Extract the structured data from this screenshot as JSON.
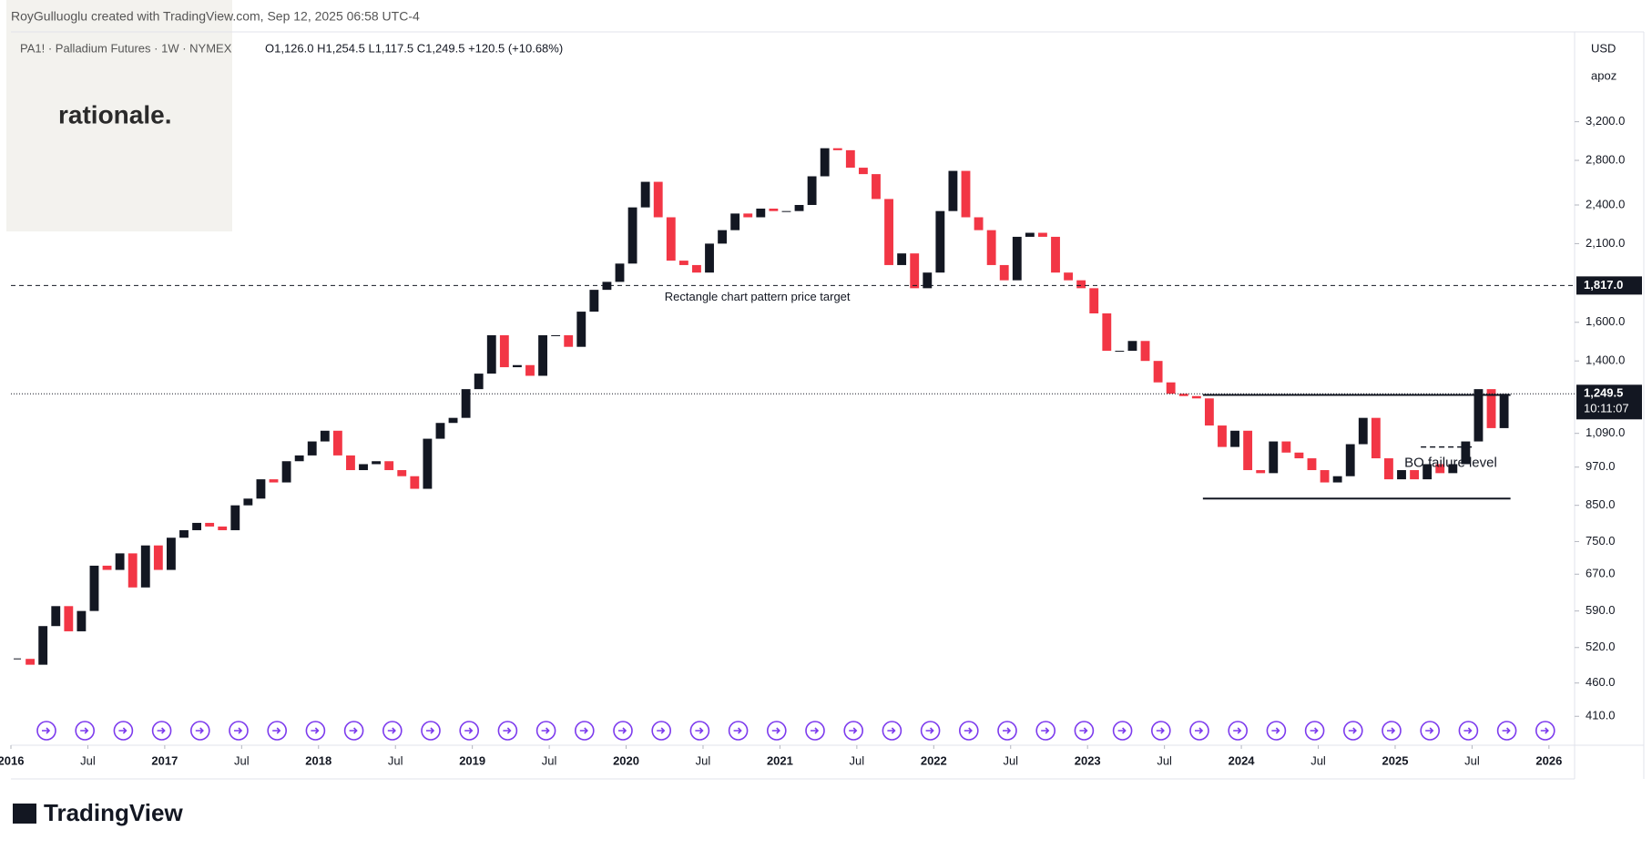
{
  "header": {
    "credit": "RoyGulluoglu created with TradingView.com, Sep 12, 2025 06:58 UTC-4",
    "symbol": "PA1! · Palladium Futures · 1W · NYMEX",
    "ohlc": "O1,126.0 H1,254.5 L1,117.5 C1,249.5 +120.5 (+10.68%)",
    "watermark": "rationale.",
    "currency": "USD",
    "unit": "apoz",
    "brand": "TradingView"
  },
  "chart_data": {
    "type": "candlestick",
    "log_scale": true,
    "grid": false,
    "up_color": "#131722",
    "down_color": "#f23645",
    "x": [
      "2016-01",
      "2016-02",
      "2016-03",
      "2016-04",
      "2016-05",
      "2016-06",
      "2016-07",
      "2016-08",
      "2016-09",
      "2016-10",
      "2016-11",
      "2016-12",
      "2017-01",
      "2017-02",
      "2017-03",
      "2017-04",
      "2017-05",
      "2017-06",
      "2017-07",
      "2017-08",
      "2017-09",
      "2017-10",
      "2017-11",
      "2017-12",
      "2018-01",
      "2018-02",
      "2018-03",
      "2018-04",
      "2018-05",
      "2018-06",
      "2018-07",
      "2018-08",
      "2018-09",
      "2018-10",
      "2018-11",
      "2018-12",
      "2019-01",
      "2019-02",
      "2019-03",
      "2019-04",
      "2019-05",
      "2019-06",
      "2019-07",
      "2019-08",
      "2019-09",
      "2019-10",
      "2019-11",
      "2019-12",
      "2020-01",
      "2020-02",
      "2020-03",
      "2020-04",
      "2020-05",
      "2020-06",
      "2020-07",
      "2020-08",
      "2020-09",
      "2020-10",
      "2020-11",
      "2020-12",
      "2021-01",
      "2021-02",
      "2021-03",
      "2021-04",
      "2021-05",
      "2021-06",
      "2021-07",
      "2021-08",
      "2021-09",
      "2021-10",
      "2021-11",
      "2021-12",
      "2022-01",
      "2022-02",
      "2022-03",
      "2022-04",
      "2022-05",
      "2022-06",
      "2022-07",
      "2022-08",
      "2022-09",
      "2022-10",
      "2022-11",
      "2022-12",
      "2023-01",
      "2023-02",
      "2023-03",
      "2023-04",
      "2023-05",
      "2023-06",
      "2023-07",
      "2023-08",
      "2023-09",
      "2023-10",
      "2023-11",
      "2023-12",
      "2024-01",
      "2024-02",
      "2024-03",
      "2024-04",
      "2024-05",
      "2024-06",
      "2024-07",
      "2024-08",
      "2024-09",
      "2024-10",
      "2024-11",
      "2024-12",
      "2025-01",
      "2025-02",
      "2025-03",
      "2025-04",
      "2025-05",
      "2025-06",
      "2025-07",
      "2025-08",
      "2025-09"
    ],
    "values": [
      500,
      490,
      560,
      600,
      550,
      590,
      690,
      680,
      720,
      640,
      740,
      680,
      760,
      780,
      800,
      790,
      780,
      850,
      870,
      930,
      920,
      990,
      1010,
      1060,
      1100,
      1010,
      960,
      980,
      990,
      960,
      940,
      900,
      1070,
      1130,
      1150,
      1270,
      1340,
      1530,
      1370,
      1380,
      1330,
      1530,
      1530,
      1470,
      1660,
      1790,
      1840,
      1960,
      2380,
      2600,
      2300,
      1980,
      1950,
      1900,
      2100,
      2200,
      2330,
      2300,
      2370,
      2350,
      2350,
      2400,
      2650,
      2920,
      2900,
      2730,
      2670,
      2450,
      1950,
      2030,
      1800,
      1900,
      2350,
      2700,
      2300,
      2200,
      1950,
      1850,
      2150,
      2180,
      2150,
      1900,
      1850,
      1800,
      1650,
      1450,
      1450,
      1500,
      1400,
      1300,
      1250,
      1240,
      1230,
      1120,
      1040,
      1100,
      960,
      950,
      1060,
      1020,
      1000,
      960,
      920,
      940,
      1050,
      1150,
      1000,
      930,
      960,
      930,
      980,
      950,
      980,
      1060,
      1270,
      1110,
      1249.5
    ],
    "xlim": [
      "2016-01",
      "2026-03"
    ],
    "xticks": [
      {
        "value": "2016-01",
        "label": "2016"
      },
      {
        "value": "2016-07",
        "label": "Jul"
      },
      {
        "value": "2017-01",
        "label": "2017"
      },
      {
        "value": "2017-07",
        "label": "Jul"
      },
      {
        "value": "2018-01",
        "label": "2018"
      },
      {
        "value": "2018-07",
        "label": "Jul"
      },
      {
        "value": "2019-01",
        "label": "2019"
      },
      {
        "value": "2019-07",
        "label": "Jul"
      },
      {
        "value": "2020-01",
        "label": "2020"
      },
      {
        "value": "2020-07",
        "label": "Jul"
      },
      {
        "value": "2021-01",
        "label": "2021"
      },
      {
        "value": "2021-07",
        "label": "Jul"
      },
      {
        "value": "2022-01",
        "label": "2022"
      },
      {
        "value": "2022-07",
        "label": "Jul"
      },
      {
        "value": "2023-01",
        "label": "2023"
      },
      {
        "value": "2023-07",
        "label": "Jul"
      },
      {
        "value": "2024-01",
        "label": "2024"
      },
      {
        "value": "2024-07",
        "label": "Jul"
      },
      {
        "value": "2025-01",
        "label": "2025"
      },
      {
        "value": "2025-07",
        "label": "Jul"
      },
      {
        "value": "2026-01",
        "label": "2026"
      }
    ],
    "ylim": [
      371,
      4365
    ],
    "yticks": [
      {
        "value": 410,
        "label": "410.0"
      },
      {
        "value": 460,
        "label": "460.0"
      },
      {
        "value": 520,
        "label": "520.0"
      },
      {
        "value": 590,
        "label": "590.0"
      },
      {
        "value": 670,
        "label": "670.0"
      },
      {
        "value": 750,
        "label": "750.0"
      },
      {
        "value": 850,
        "label": "850.0"
      },
      {
        "value": 970,
        "label": "970.0"
      },
      {
        "value": 1090,
        "label": "1,090.0"
      },
      {
        "value": 1400,
        "label": "1,400.0"
      },
      {
        "value": 1600,
        "label": "1,600.0"
      },
      {
        "value": 2100,
        "label": "2,100.0"
      },
      {
        "value": 2400,
        "label": "2,400.0"
      },
      {
        "value": 2800,
        "label": "2,800.0"
      },
      {
        "value": 3200,
        "label": "3,200.0"
      }
    ],
    "price_target": {
      "value": 1817,
      "label": "1,817.0",
      "text": "Rectangle chart pattern price target"
    },
    "last_price": {
      "value": 1249.5,
      "label": "1,249.5",
      "countdown": "10:11:07"
    },
    "rectangle": {
      "top": 1245,
      "bottom": 870,
      "start": "2023-10",
      "end": "2025-10"
    },
    "bo_failure": {
      "value": 1040,
      "text": "BO failure level",
      "start": "2025-03",
      "end": "2025-07"
    }
  }
}
